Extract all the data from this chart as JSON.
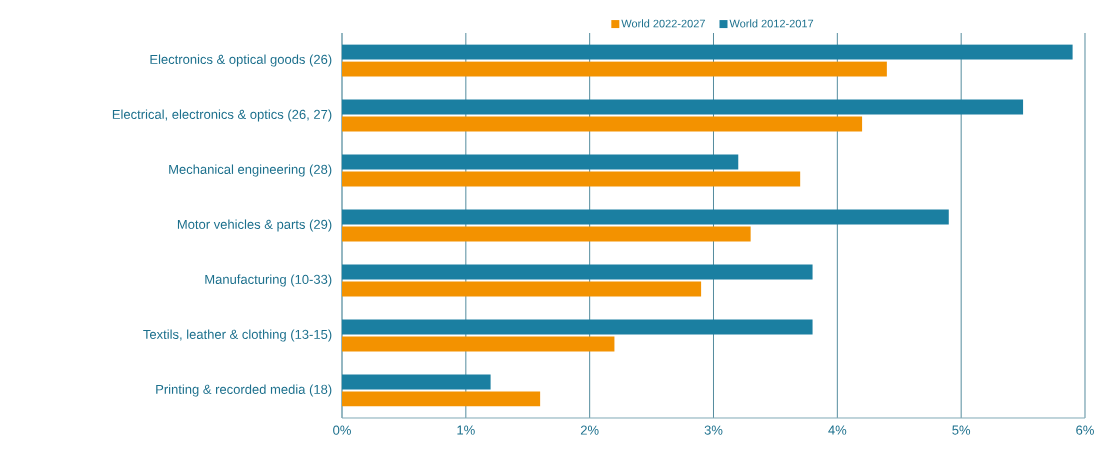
{
  "chart_data": {
    "type": "bar",
    "orientation": "horizontal",
    "categories": [
      "Electronics & optical goods (26)",
      "Electrical, electronics & optics (26, 27)",
      "Mechanical engineering (28)",
      "Motor vehicles & parts (29)",
      "Manufacturing (10-33)",
      "Textils, leather & clothing (13-15)",
      "Printing & recorded media (18)"
    ],
    "series": [
      {
        "name": "World 2022-2027",
        "color": "#f39200",
        "values": [
          4.4,
          4.2,
          3.7,
          3.3,
          2.9,
          2.2,
          1.6
        ]
      },
      {
        "name": "World 2012-2017",
        "color": "#1b7fa1",
        "values": [
          5.9,
          5.5,
          3.2,
          4.9,
          3.8,
          3.8,
          1.2
        ]
      }
    ],
    "xlim": [
      0,
      6
    ],
    "xticks": [
      {
        "value": 0,
        "label": "0%"
      },
      {
        "value": 1,
        "label": "1%"
      },
      {
        "value": 2,
        "label": "2%"
      },
      {
        "value": 3,
        "label": "3%"
      },
      {
        "value": 4,
        "label": "4%"
      },
      {
        "value": 5,
        "label": "5%"
      },
      {
        "value": 6,
        "label": "6%"
      }
    ],
    "grid": "x",
    "legend": "top"
  }
}
